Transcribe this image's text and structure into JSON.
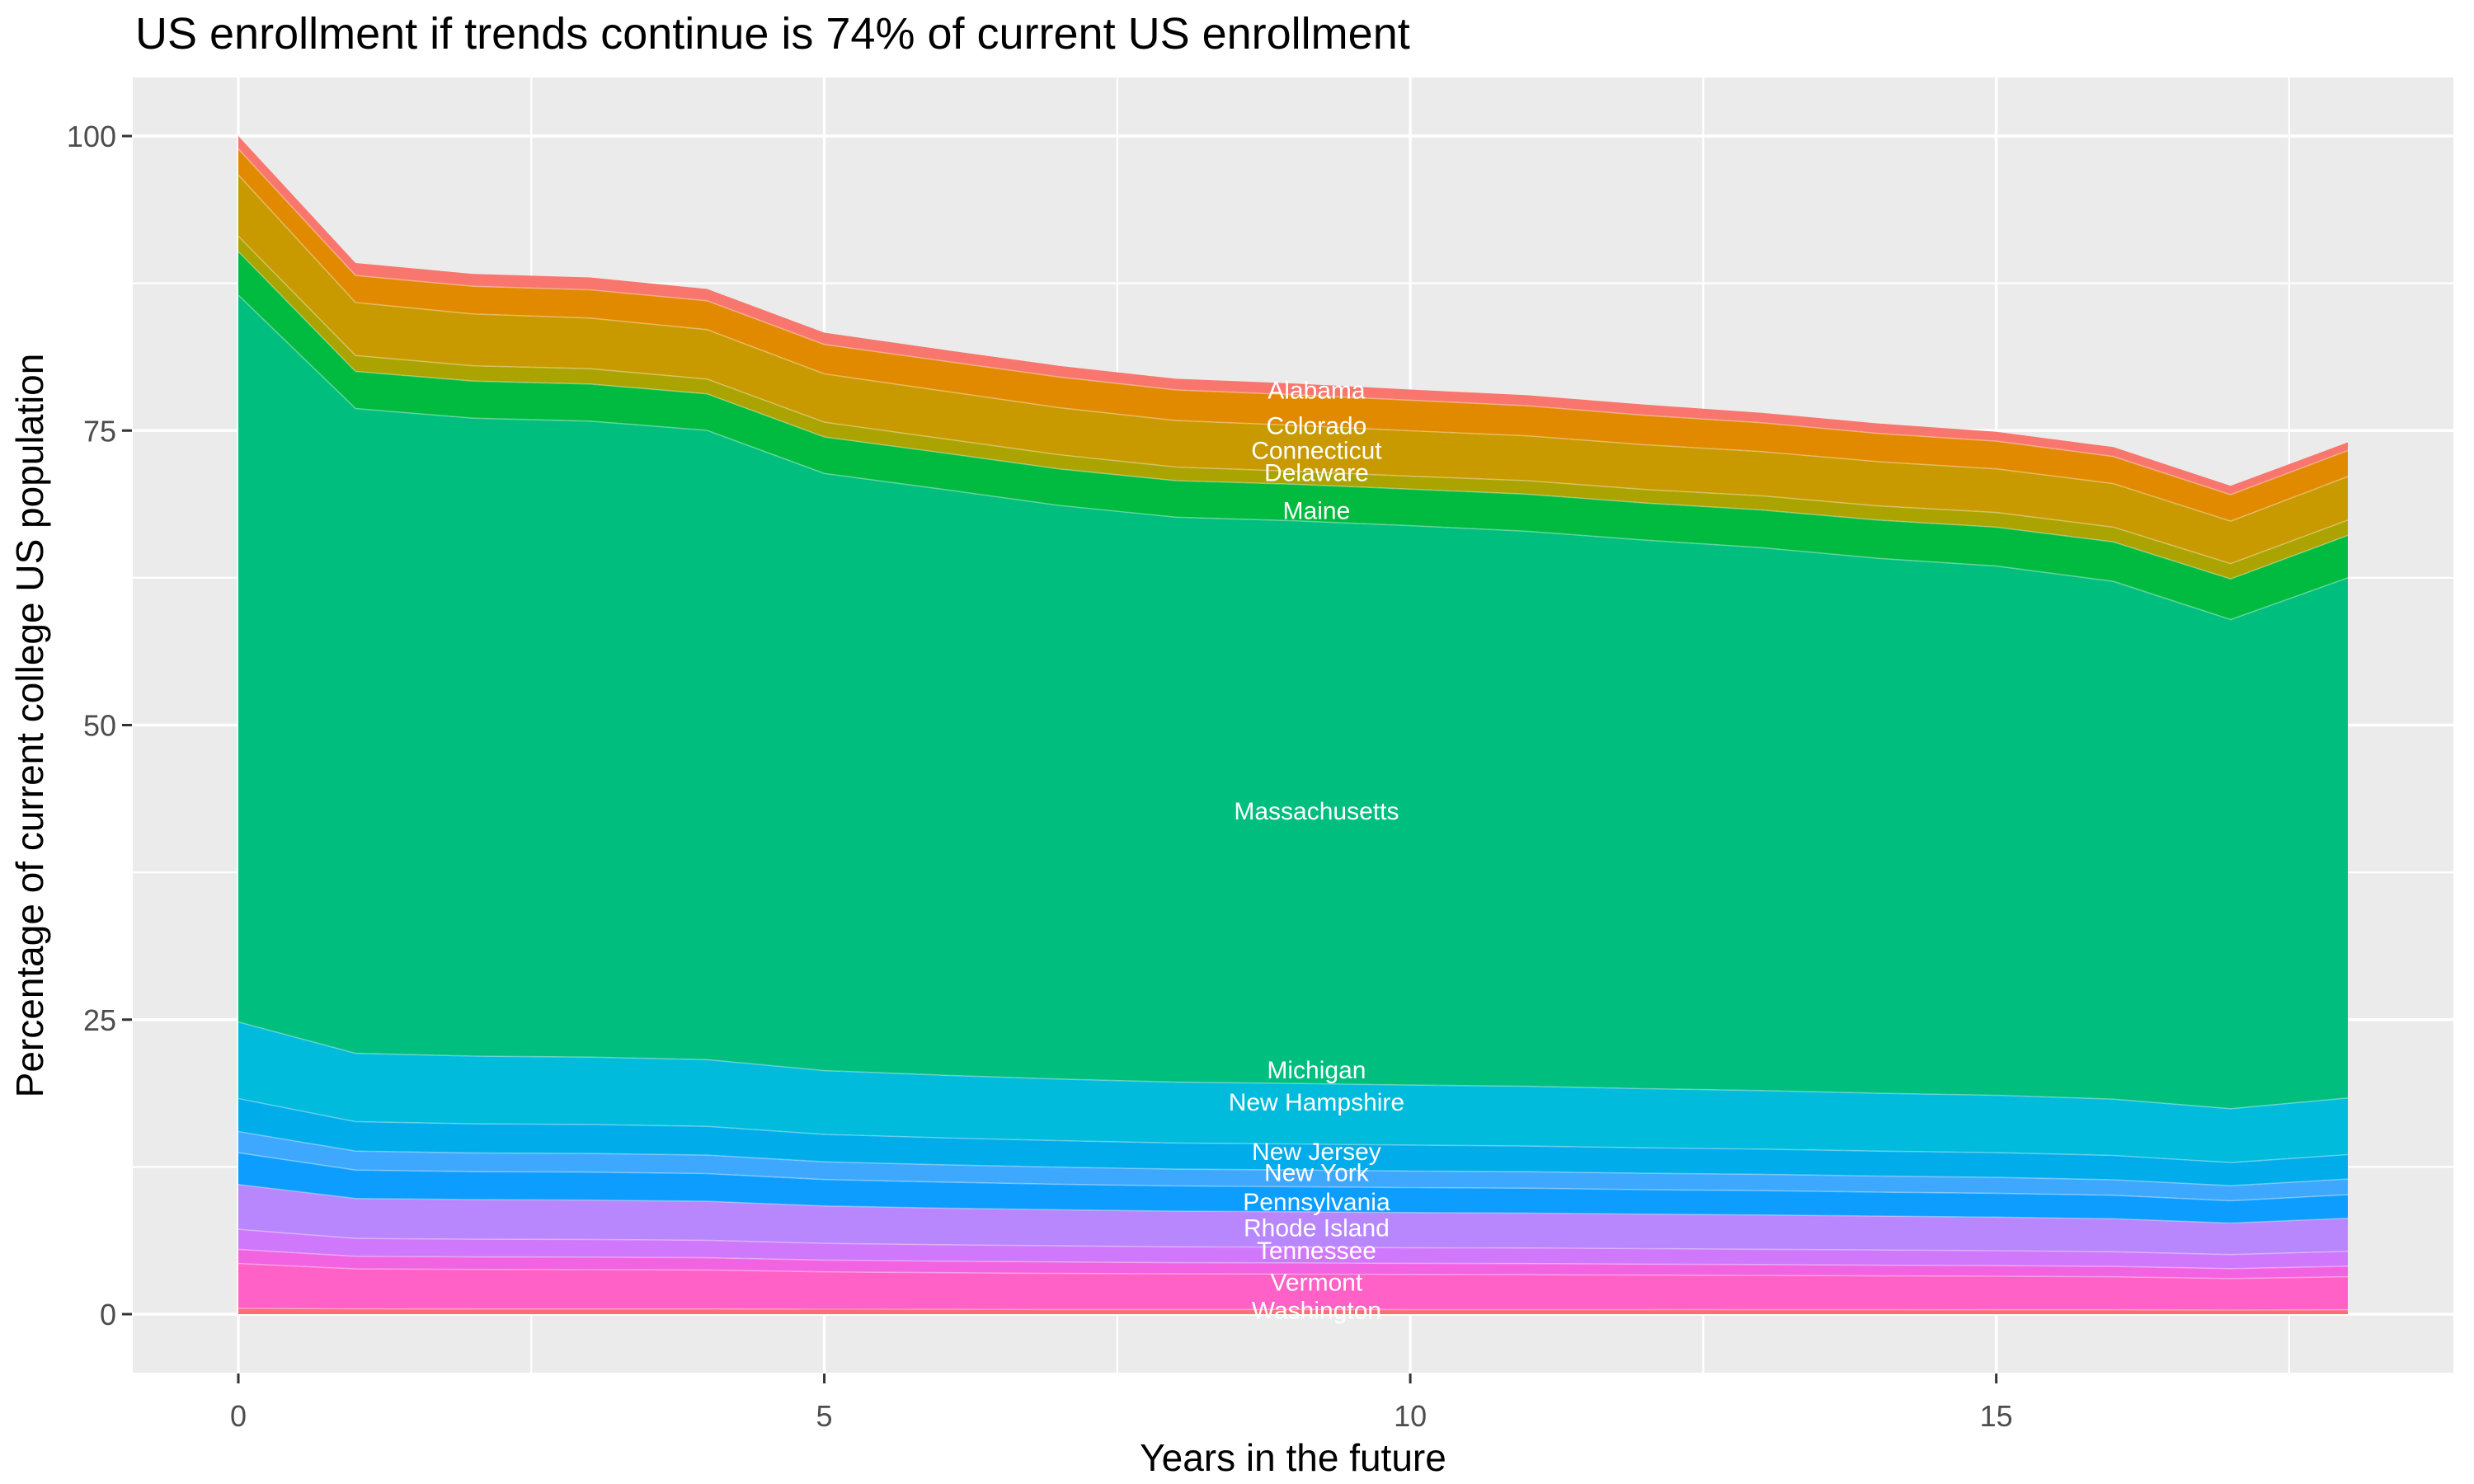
{
  "title": "US enrollment if trends continue is 74% of current US enrollment",
  "x_axis": {
    "label": "Years in the future",
    "ticks": [
      0,
      5,
      10,
      15
    ]
  },
  "y_axis": {
    "label": "Percentage of current college US population",
    "ticks": [
      0,
      25,
      50,
      75,
      100
    ]
  },
  "chart_data": {
    "type": "area",
    "stacked": true,
    "title": "US enrollment if trends continue is 74% of current US enrollment",
    "xlabel": "Years in the future",
    "ylabel": "Percentage of current college US population",
    "x": [
      0,
      1,
      2,
      3,
      4,
      5,
      6,
      7,
      8,
      9,
      10,
      11,
      12,
      13,
      14,
      15,
      16,
      17,
      18
    ],
    "x_range": [
      0,
      18
    ],
    "y_range": [
      0,
      100
    ],
    "grid": "on",
    "legend": "none",
    "panel_background": "#EBEBEB",
    "grid_color": "#FFFFFF",
    "tick_color": "#333333",
    "tick_label_color": "#4D4D4D",
    "series_label_color": "#FFFFFF",
    "series_label_x": 9.2,
    "totals_by_year": [
      100.0,
      89.2,
      88.3,
      88.0,
      87.0,
      83.3,
      81.9,
      80.5,
      79.4,
      79.0,
      78.5,
      78.0,
      77.2,
      76.5,
      75.6,
      74.9,
      73.6,
      70.3,
      74.0
    ],
    "series": [
      {
        "name": "Washington",
        "color": "#FB6E77",
        "label_value": 0.3,
        "values": [
          0.5,
          0.45,
          0.44,
          0.44,
          0.44,
          0.42,
          0.41,
          0.4,
          0.4,
          0.4,
          0.39,
          0.39,
          0.39,
          0.38,
          0.38,
          0.37,
          0.37,
          0.35,
          0.37
        ]
      },
      {
        "name": "Vermont",
        "color": "#FF61C7",
        "label_value": 2.7,
        "values": [
          3.8,
          3.39,
          3.36,
          3.34,
          3.31,
          3.17,
          3.11,
          3.06,
          3.02,
          3.0,
          2.98,
          2.96,
          2.93,
          2.91,
          2.87,
          2.85,
          2.8,
          2.67,
          2.81
        ]
      },
      {
        "name": "Tennessee",
        "color": "#F263E2",
        "label_value": 5.4,
        "values": [
          1.2,
          1.07,
          1.06,
          1.06,
          1.04,
          1.0,
          0.98,
          0.97,
          0.95,
          0.95,
          0.94,
          0.94,
          0.93,
          0.92,
          0.91,
          0.9,
          0.88,
          0.84,
          0.89
        ]
      },
      {
        "name": "Rhode Island",
        "color": "#D078FC",
        "label_value": 7.3,
        "values": [
          1.7,
          1.52,
          1.5,
          1.5,
          1.48,
          1.42,
          1.39,
          1.37,
          1.35,
          1.34,
          1.33,
          1.33,
          1.31,
          1.3,
          1.29,
          1.27,
          1.25,
          1.2,
          1.26
        ]
      },
      {
        "name": "Pennsylvania",
        "color": "#B886FD",
        "label_value": 9.5,
        "values": [
          3.8,
          3.39,
          3.36,
          3.34,
          3.31,
          3.17,
          3.11,
          3.06,
          3.02,
          3.0,
          2.98,
          2.96,
          2.93,
          2.91,
          2.87,
          2.85,
          2.8,
          2.67,
          2.81
        ]
      },
      {
        "name": "New York",
        "color": "#0D9DFF",
        "label_value": 12.0,
        "values": [
          2.7,
          2.41,
          2.38,
          2.38,
          2.35,
          2.25,
          2.21,
          2.17,
          2.14,
          2.13,
          2.12,
          2.11,
          2.08,
          2.07,
          2.04,
          2.02,
          1.99,
          1.9,
          2.0
        ]
      },
      {
        "name": "New Jersey",
        "color": "#3EA8FE",
        "label_value": 13.8,
        "values": [
          1.8,
          1.61,
          1.59,
          1.58,
          1.57,
          1.5,
          1.47,
          1.45,
          1.43,
          1.42,
          1.41,
          1.4,
          1.39,
          1.38,
          1.36,
          1.35,
          1.32,
          1.27,
          1.33
        ]
      },
      {
        "name": "New Hampshire",
        "color": "#00ACE9",
        "label_value": 18.0,
        "values": [
          2.8,
          2.5,
          2.47,
          2.46,
          2.44,
          2.33,
          2.29,
          2.25,
          2.22,
          2.21,
          2.2,
          2.18,
          2.16,
          2.14,
          2.12,
          2.1,
          2.06,
          1.97,
          2.07
        ]
      },
      {
        "name": "Michigan",
        "color": "#00BBDC",
        "label_value": 20.7,
        "values": [
          6.5,
          5.8,
          5.74,
          5.72,
          5.66,
          5.41,
          5.32,
          5.23,
          5.16,
          5.14,
          5.1,
          5.07,
          5.02,
          4.97,
          4.91,
          4.87,
          4.78,
          4.57,
          4.81
        ]
      },
      {
        "name": "Massachusetts",
        "color": "#00BE7E",
        "label_value": 42.7,
        "values": [
          61.7,
          54.73,
          54.15,
          53.98,
          53.42,
          50.69,
          49.74,
          48.69,
          47.96,
          47.76,
          47.48,
          47.11,
          46.56,
          46.08,
          45.4,
          44.92,
          43.95,
          41.52,
          44.15
        ]
      },
      {
        "name": "Maine",
        "color": "#00BB40",
        "label_value": 68.2,
        "values": [
          3.7,
          3.15,
          3.15,
          3.15,
          3.1,
          3.1,
          3.1,
          3.1,
          3.1,
          3.1,
          3.1,
          3.15,
          3.15,
          3.2,
          3.25,
          3.3,
          3.35,
          3.45,
          3.6
        ]
      },
      {
        "name": "Delaware",
        "color": "#ABA300",
        "label_value": 71.4,
        "values": [
          1.3,
          1.35,
          1.3,
          1.3,
          1.25,
          1.25,
          1.2,
          1.2,
          1.15,
          1.1,
          1.1,
          1.15,
          1.15,
          1.2,
          1.2,
          1.25,
          1.25,
          1.3,
          1.3
        ]
      },
      {
        "name": "Connecticut",
        "color": "#C89A00",
        "label_value": 73.3,
        "values": [
          5.2,
          4.5,
          4.4,
          4.3,
          4.2,
          4.1,
          4.05,
          4.0,
          3.95,
          3.9,
          3.85,
          3.8,
          3.8,
          3.75,
          3.75,
          3.7,
          3.7,
          3.6,
          3.7
        ]
      },
      {
        "name": "Colorado",
        "color": "#E18A00",
        "label_value": 75.4,
        "values": [
          2.2,
          2.3,
          2.35,
          2.4,
          2.45,
          2.5,
          2.55,
          2.6,
          2.6,
          2.6,
          2.6,
          2.55,
          2.5,
          2.45,
          2.4,
          2.35,
          2.3,
          2.25,
          2.2
        ]
      },
      {
        "name": "Alabama",
        "color": "#F8766D",
        "label_value": 78.4,
        "values": [
          1.1,
          1.05,
          1.05,
          1.05,
          1.0,
          1.0,
          0.95,
          0.95,
          0.95,
          0.95,
          0.9,
          0.9,
          0.9,
          0.85,
          0.85,
          0.8,
          0.8,
          0.75,
          0.7
        ]
      }
    ]
  }
}
